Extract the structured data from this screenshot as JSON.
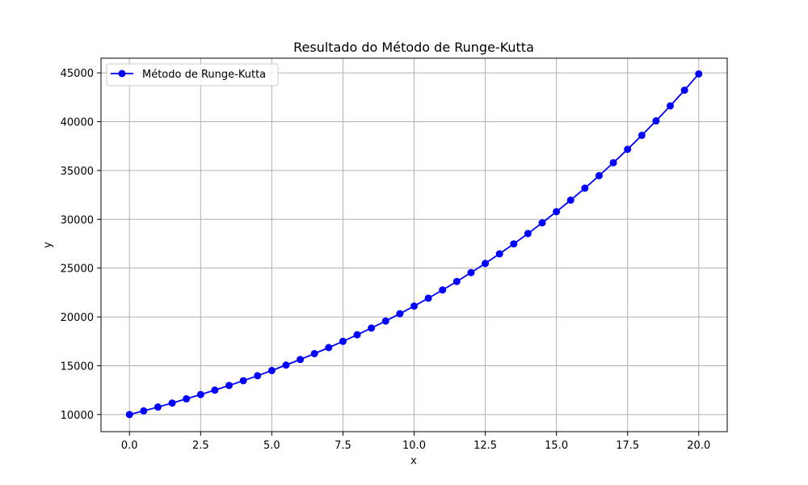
{
  "chart_data": {
    "type": "line",
    "title": "Resultado do Método de Runge-Kutta",
    "xlabel": "x",
    "ylabel": "y",
    "xlim": [
      -1.0,
      21.0
    ],
    "ylim": [
      8250,
      46500
    ],
    "xticks": [
      0.0,
      2.5,
      5.0,
      7.5,
      10.0,
      12.5,
      15.0,
      17.5,
      20.0
    ],
    "xtick_labels": [
      "0.0",
      "2.5",
      "5.0",
      "7.5",
      "10.0",
      "12.5",
      "15.0",
      "17.5",
      "20.0"
    ],
    "yticks": [
      10000,
      15000,
      20000,
      25000,
      30000,
      35000,
      40000,
      45000
    ],
    "ytick_labels": [
      "10000",
      "15000",
      "20000",
      "25000",
      "30000",
      "35000",
      "40000",
      "45000"
    ],
    "grid": true,
    "legend_position": "upper-left",
    "series": [
      {
        "name": "Método de Runge-Kutta",
        "color": "#0000ff",
        "marker": "circle",
        "x": [
          0.0,
          0.5,
          1.0,
          1.5,
          2.0,
          2.5,
          3.0,
          3.5,
          4.0,
          4.5,
          5.0,
          5.5,
          6.0,
          6.5,
          7.0,
          7.5,
          8.0,
          8.5,
          9.0,
          9.5,
          10.0,
          10.5,
          11.0,
          11.5,
          12.0,
          12.5,
          13.0,
          13.5,
          14.0,
          14.5,
          15.0,
          15.5,
          16.0,
          16.5,
          17.0,
          17.5,
          18.0,
          18.5,
          19.0,
          19.5,
          20.0
        ],
        "y": [
          10000,
          10380,
          10770,
          11180,
          11610,
          12050,
          12500,
          12980,
          13470,
          13980,
          14510,
          15070,
          15640,
          16240,
          16860,
          17500,
          18170,
          18860,
          19580,
          20330,
          21110,
          21920,
          22760,
          23630,
          24540,
          25480,
          26460,
          27480,
          28540,
          29640,
          30780,
          31960,
          33190,
          34470,
          35790,
          37170,
          38600,
          40080,
          41620,
          43220,
          44890
        ]
      }
    ]
  }
}
